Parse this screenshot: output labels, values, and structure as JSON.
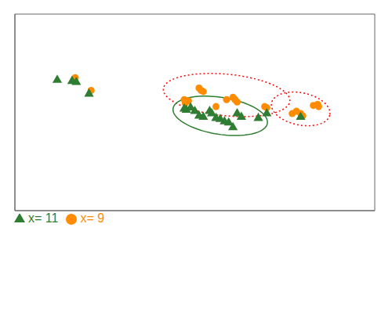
{
  "chart_data": {
    "type": "scatter",
    "xlim": [
      -15,
      155
    ],
    "ylim": [
      -10,
      75
    ],
    "tick_labels": false,
    "grid": false,
    "legend": "lower left",
    "series": [
      {
        "name": "x= 9",
        "color": "#FF8C00",
        "marker": "circle",
        "x": [
          13.5,
          21.0,
          65.0,
          65.5,
          67.0,
          72.0,
          73.0,
          74.0,
          80.0,
          85.0,
          88.0,
          89.0,
          90.0,
          103.0,
          104.0,
          116.0,
          118.0,
          120.0,
          121.0,
          126.0,
          128.0,
          128.5
        ],
        "values": [
          47.5,
          42.0,
          38.0,
          36.5,
          37.5,
          43.0,
          42.0,
          41.5,
          35.0,
          38.0,
          39.0,
          38.0,
          37.0,
          35.0,
          34.5,
          32.0,
          33.0,
          32.0,
          31.0,
          35.5,
          36.0,
          35.0
        ]
      },
      {
        "name": "x= 11",
        "color": "#2E7D32",
        "marker": "triangle",
        "x": [
          5.0,
          12.0,
          14.0,
          20.0,
          65.0,
          66.0,
          68.0,
          70.0,
          72.0,
          74.0,
          77.0,
          78.0,
          80.0,
          82.0,
          84.0,
          86.0,
          88.0,
          90.0,
          92.0,
          100.0,
          104.0,
          120.0
        ],
        "values": [
          46.5,
          46.0,
          45.5,
          40.5,
          34.0,
          33.5,
          34.5,
          33.0,
          31.0,
          30.5,
          33.0,
          32.0,
          30.0,
          29.5,
          28.5,
          28.0,
          26.0,
          32.0,
          30.5,
          30.0,
          32.0,
          30.5
        ]
      }
    ],
    "ellipses": [
      {
        "cx": 85,
        "cy": 40,
        "width": 60,
        "height": 18,
        "angle": -5,
        "color": "red",
        "line_style": "dotted"
      },
      {
        "cx": 120,
        "cy": 34,
        "width": 28,
        "height": 14,
        "angle": -10,
        "color": "red",
        "line_style": "dotted"
      },
      {
        "cx": 82,
        "cy": 31,
        "width": 45,
        "height": 16,
        "angle": -8,
        "color": "#2E7D32",
        "line_style": "solid"
      }
    ]
  }
}
